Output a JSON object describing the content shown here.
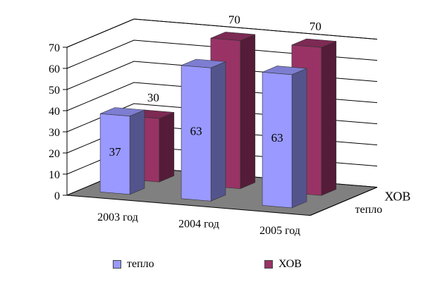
{
  "chart_data": {
    "type": "bar",
    "variant": "3d-clustered-columns",
    "categories": [
      "2003 год",
      "2004 год",
      "2005 год"
    ],
    "series": [
      {
        "name": "тепло",
        "values": [
          37,
          63,
          63
        ],
        "color": "#9999ff",
        "depth_label": "тепло"
      },
      {
        "name": "ХОВ",
        "values": [
          30,
          70,
          70
        ],
        "color": "#993366",
        "depth_label": "ХОВ"
      }
    ],
    "ylim": [
      0,
      70
    ],
    "yticks": [
      "0",
      "10",
      "20",
      "30",
      "40",
      "50",
      "60",
      "70"
    ],
    "grid": true,
    "legend_position": "bottom",
    "floor_color": "#808080",
    "data_labels": true
  }
}
